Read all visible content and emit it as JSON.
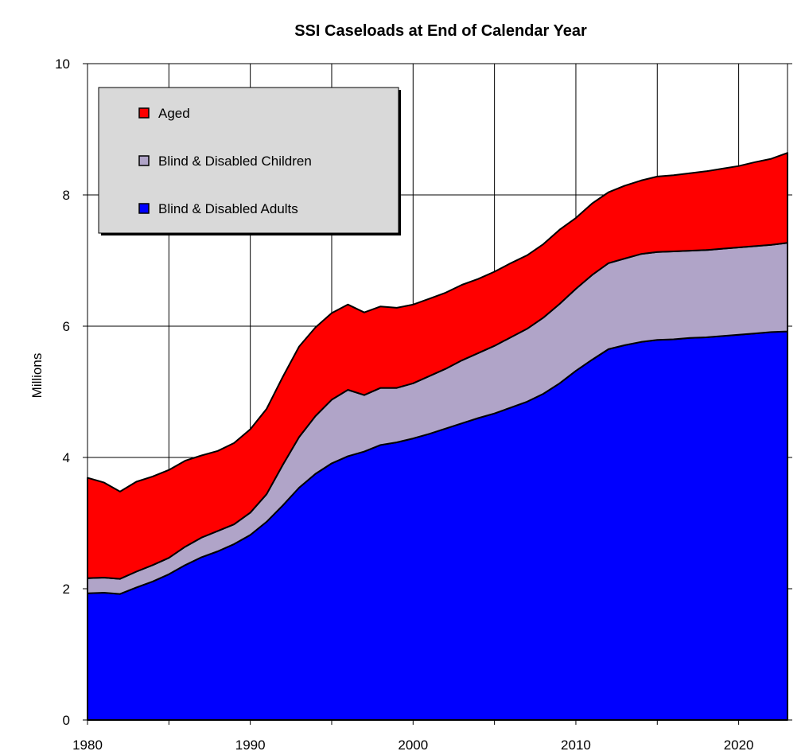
{
  "chart_data": {
    "type": "area",
    "stacked": true,
    "title": "SSI Caseloads at End of Calendar Year",
    "xlabel": "",
    "ylabel": "Millions",
    "xlim": [
      1980,
      2023
    ],
    "ylim": [
      0,
      10
    ],
    "x_ticks": [
      "1980",
      "1990",
      "2000",
      "2010",
      "2020"
    ],
    "y_ticks": [
      "0",
      "2",
      "4",
      "6",
      "8",
      "10"
    ],
    "grid": true,
    "legend_position": "top-left",
    "x": [
      1980,
      1981,
      1982,
      1983,
      1984,
      1985,
      1986,
      1987,
      1988,
      1989,
      1990,
      1991,
      1992,
      1993,
      1994,
      1995,
      1996,
      1997,
      1998,
      1999,
      2000,
      2001,
      2002,
      2003,
      2004,
      2005,
      2006,
      2007,
      2008,
      2009,
      2010,
      2011,
      2012,
      2013,
      2014,
      2015,
      2016,
      2017,
      2018,
      2019,
      2020,
      2021,
      2022,
      2023
    ],
    "series": [
      {
        "name": "Blind & Disabled Adults",
        "color": "#0000ff",
        "values": [
          1.93,
          1.94,
          1.92,
          2.02,
          2.11,
          2.22,
          2.36,
          2.48,
          2.57,
          2.68,
          2.82,
          3.02,
          3.27,
          3.54,
          3.75,
          3.91,
          4.02,
          4.09,
          4.19,
          4.23,
          4.29,
          4.36,
          4.44,
          4.52,
          4.6,
          4.67,
          4.76,
          4.85,
          4.97,
          5.13,
          5.32,
          5.49,
          5.65,
          5.71,
          5.76,
          5.79,
          5.8,
          5.82,
          5.83,
          5.85,
          5.87,
          5.89,
          5.91,
          5.92
        ]
      },
      {
        "name": "Blind & Disabled Children",
        "color": "#b0a4c8",
        "values": [
          0.23,
          0.23,
          0.23,
          0.24,
          0.25,
          0.25,
          0.28,
          0.3,
          0.31,
          0.3,
          0.34,
          0.42,
          0.62,
          0.77,
          0.88,
          0.97,
          1.01,
          0.86,
          0.87,
          0.83,
          0.84,
          0.88,
          0.91,
          0.96,
          0.99,
          1.03,
          1.07,
          1.11,
          1.16,
          1.21,
          1.25,
          1.29,
          1.31,
          1.32,
          1.34,
          1.34,
          1.34,
          1.33,
          1.33,
          1.33,
          1.33,
          1.33,
          1.33,
          1.35
        ]
      },
      {
        "name": "Aged",
        "color": "#ff0000",
        "values": [
          1.53,
          1.45,
          1.33,
          1.37,
          1.35,
          1.34,
          1.31,
          1.25,
          1.22,
          1.24,
          1.27,
          1.3,
          1.34,
          1.38,
          1.35,
          1.32,
          1.3,
          1.26,
          1.24,
          1.22,
          1.2,
          1.18,
          1.16,
          1.15,
          1.13,
          1.13,
          1.13,
          1.12,
          1.12,
          1.13,
          1.08,
          1.09,
          1.08,
          1.11,
          1.12,
          1.15,
          1.16,
          1.18,
          1.2,
          1.22,
          1.24,
          1.28,
          1.31,
          1.37
        ]
      }
    ]
  }
}
